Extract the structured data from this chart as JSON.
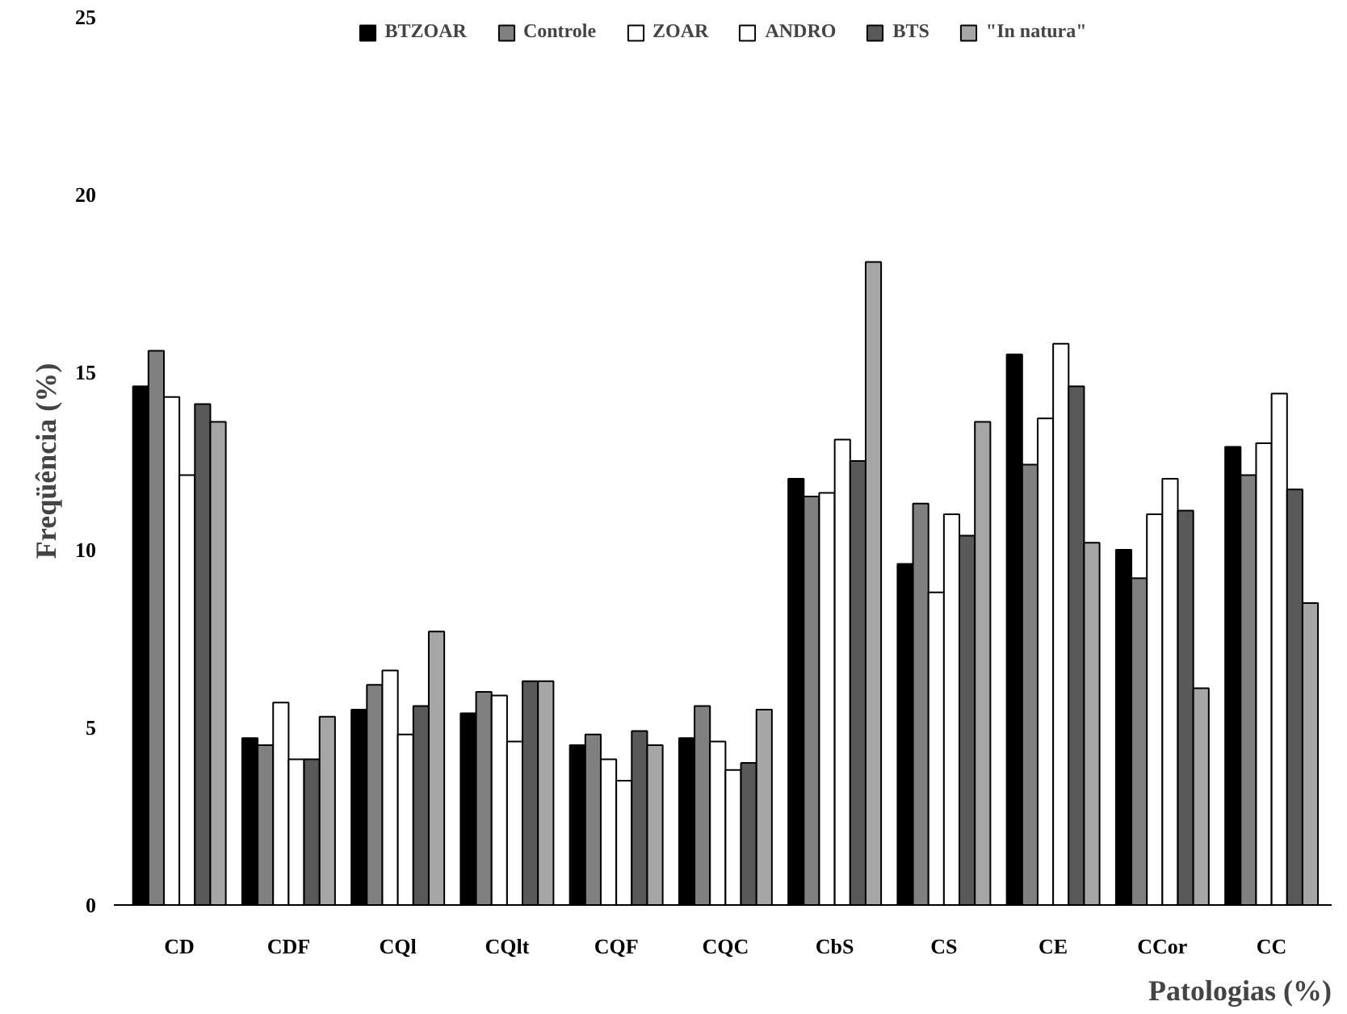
{
  "chart_data": {
    "type": "bar",
    "xlabel": "Patologias (%)",
    "ylabel": "Freqüência (%)",
    "categories": [
      "CD",
      "CDF",
      "CQl",
      "CQlt",
      "CQF",
      "CQC",
      "CbS",
      "CS",
      "CE",
      "CCor",
      "CC"
    ],
    "series": [
      {
        "name": "BTZOAR",
        "color": "#000000",
        "values": [
          14.6,
          4.7,
          5.5,
          5.4,
          4.5,
          4.7,
          12.0,
          9.6,
          15.5,
          10.0,
          12.9
        ]
      },
      {
        "name": "Controle",
        "color": "#808080",
        "values": [
          15.6,
          4.5,
          6.2,
          6.0,
          4.8,
          5.6,
          11.5,
          11.3,
          12.4,
          9.2,
          12.1
        ]
      },
      {
        "name": "ZOAR",
        "color": "#ffffff",
        "values": [
          14.3,
          5.7,
          6.6,
          5.9,
          4.1,
          4.6,
          11.6,
          8.8,
          13.7,
          11.0,
          13.0
        ]
      },
      {
        "name": "ANDRO",
        "color": "#ffffff",
        "values": [
          12.1,
          4.1,
          4.8,
          4.6,
          3.5,
          3.8,
          13.1,
          11.0,
          15.8,
          12.0,
          14.4
        ]
      },
      {
        "name": "BTS",
        "color": "#595959",
        "values": [
          14.1,
          4.1,
          5.6,
          6.3,
          4.9,
          4.0,
          12.5,
          10.4,
          14.6,
          11.1,
          11.7
        ]
      },
      {
        "name": "\"In natura\"",
        "color": "#a6a6a6",
        "values": [
          13.6,
          5.3,
          7.7,
          6.3,
          4.5,
          5.5,
          18.1,
          13.6,
          10.2,
          6.1,
          8.5
        ]
      }
    ],
    "ylim": [
      0,
      25
    ],
    "yticks": [
      0,
      5,
      10,
      15,
      20,
      25
    ],
    "grid": false,
    "legend": "top"
  }
}
